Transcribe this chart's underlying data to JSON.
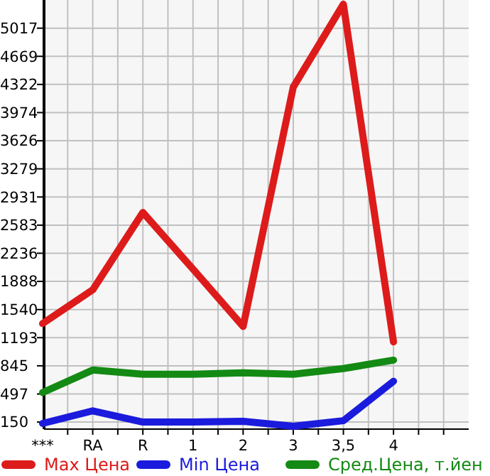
{
  "chart_data": {
    "type": "line",
    "categories": [
      "***",
      "RA",
      "R",
      "1",
      "2",
      "3",
      "3,5",
      "4"
    ],
    "series": [
      {
        "name": "Max Цена",
        "color": "#dd1b1b",
        "values": [
          1367,
          1784,
          2740,
          2040,
          1332,
          4288,
          5313,
          1141
        ]
      },
      {
        "name": "Min Цена",
        "color": "#1b1bdd",
        "values": [
          133,
          289,
          150,
          150,
          160,
          98,
          167,
          654
        ]
      },
      {
        "name": "Сред.Цена, т.йен",
        "color": "#138a13",
        "values": [
          515,
          793,
          741,
          741,
          758,
          741,
          811,
          915
        ]
      }
    ],
    "ylim": [
      63,
      5365
    ],
    "yticks": [
      150,
      497,
      845,
      1193,
      1540,
      1888,
      2236,
      2583,
      2931,
      3279,
      3626,
      3974,
      4322,
      4669,
      5017
    ],
    "grid": true,
    "legend": "bottom",
    "marker": "none",
    "line_style": "solid"
  }
}
